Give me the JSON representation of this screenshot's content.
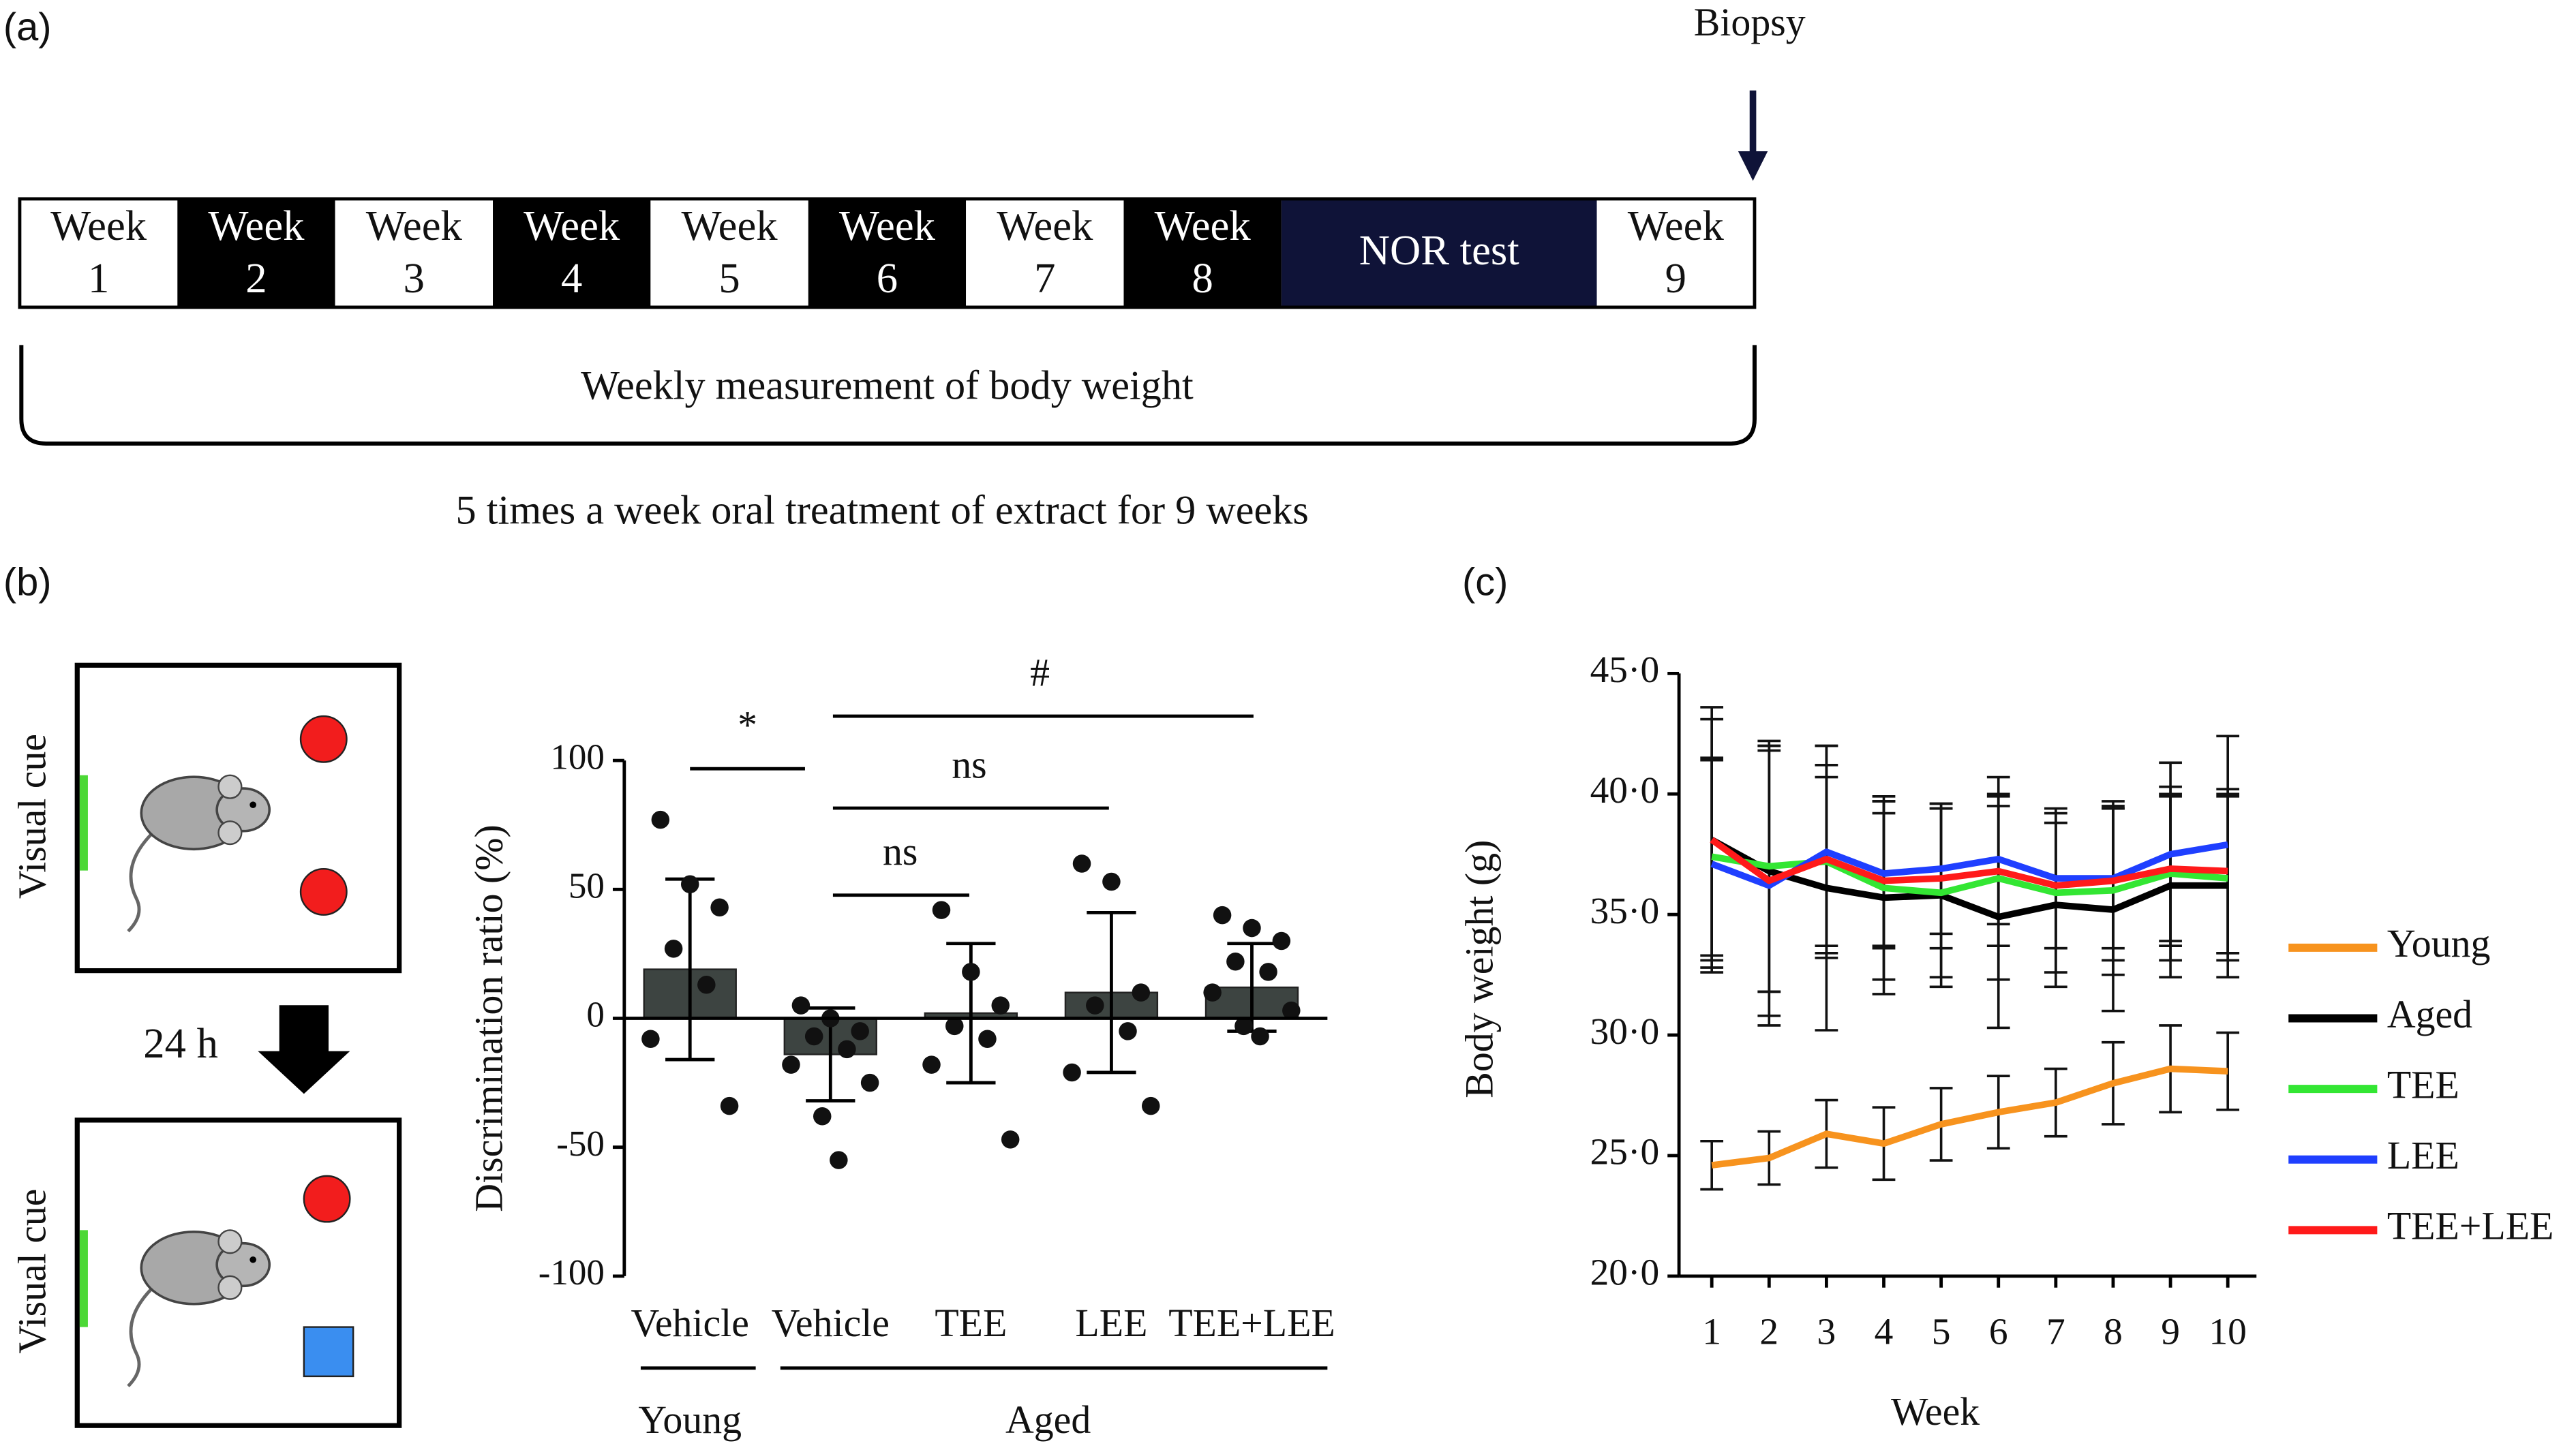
{
  "panel_labels": [
    "(a)",
    "(b)",
    "(c)"
  ],
  "timeline": {
    "biopsy": "Biopsy",
    "weeks": [
      [
        "Week",
        "1"
      ],
      [
        "Week",
        "2"
      ],
      [
        "Week",
        "3"
      ],
      [
        "Week",
        "4"
      ],
      [
        "Week",
        "5"
      ],
      [
        "Week",
        "6"
      ],
      [
        "Week",
        "7"
      ],
      [
        "Week",
        "8"
      ]
    ],
    "nor_test": "NOR test",
    "last_week": [
      "Week",
      "9"
    ],
    "bracket_label": "Weekly measurement of body weight",
    "caption": "5 times a week oral treatment of extract for 9 weeks"
  },
  "nor_diagram": {
    "cue_labels": [
      "Visual cue",
      "Visual cue"
    ],
    "interval": "24 h"
  },
  "chart_data": [
    {
      "type": "bar",
      "ylabel": "Discrimination ratio (%)",
      "categories": [
        "Vehicle",
        "Vehicle",
        "TEE",
        "LEE",
        "TEE+LEE"
      ],
      "groups": [
        "Young",
        "Aged"
      ],
      "values": [
        19,
        -14,
        2,
        10,
        12
      ],
      "errors": [
        35,
        18,
        27,
        31,
        17
      ],
      "points": [
        [
          77,
          52,
          43,
          27,
          13,
          -8,
          -34
        ],
        [
          5,
          0,
          -5,
          -7,
          -12,
          -18,
          -25,
          -38,
          -55
        ],
        [
          42,
          18,
          5,
          -3,
          -8,
          -18,
          -47
        ],
        [
          60,
          53,
          10,
          5,
          -5,
          -21,
          -34
        ],
        [
          40,
          35,
          30,
          22,
          18,
          10,
          3,
          -3,
          -7
        ]
      ],
      "color": "#3d4441",
      "ylim": [
        -100,
        100
      ],
      "yticks": [
        100,
        50,
        0,
        -50,
        -100
      ],
      "annotations": [
        "*",
        "ns",
        "ns",
        "#"
      ]
    },
    {
      "type": "line",
      "xlabel": "Week",
      "ylabel": "Body weight (g)",
      "x": [
        1,
        2,
        3,
        4,
        5,
        6,
        7,
        8,
        9,
        10
      ],
      "xlim": [
        0.5,
        10.5
      ],
      "xticks": [
        1,
        2,
        3,
        4,
        5,
        6,
        7,
        8,
        9,
        10
      ],
      "ylim": [
        20,
        45
      ],
      "yticks": [
        {
          "value": 45,
          "label": "45·0"
        },
        {
          "value": 40,
          "label": "40·0"
        },
        {
          "value": 35,
          "label": "35·0"
        },
        {
          "value": 30,
          "label": "30·0"
        },
        {
          "value": 25,
          "label": "25·0"
        },
        {
          "value": 20,
          "label": "20·0"
        }
      ],
      "series": [
        {
          "name": "Young",
          "color": "#f7931e",
          "values": [
            24.6,
            24.9,
            25.9,
            25.5,
            26.3,
            26.8,
            27.2,
            28.0,
            28.6,
            28.5
          ],
          "errors": [
            1.0,
            1.1,
            1.4,
            1.5,
            1.5,
            1.5,
            1.4,
            1.7,
            1.8,
            1.6
          ]
        },
        {
          "name": "Aged",
          "color": "#000000",
          "values": [
            38.1,
            36.8,
            36.1,
            35.7,
            35.8,
            34.9,
            35.4,
            35.2,
            36.2,
            36.2
          ],
          "errors": [
            5.0,
            5.0,
            5.9,
            4.0,
            3.8,
            4.6,
            3.4,
            4.2,
            3.8,
            3.8
          ]
        },
        {
          "name": "TEE",
          "color": "#33e633",
          "values": [
            37.4,
            37.0,
            37.2,
            36.1,
            35.9,
            36.5,
            35.9,
            36.0,
            36.7,
            36.5
          ],
          "errors": [
            4.1,
            5.2,
            3.5,
            3.8,
            3.5,
            4.2,
            3.3,
            3.5,
            3.6,
            3.4
          ]
        },
        {
          "name": "LEE",
          "color": "#1f3fff",
          "values": [
            37.1,
            36.2,
            37.6,
            36.7,
            36.9,
            37.3,
            36.5,
            36.5,
            37.5,
            37.9
          ],
          "errors": [
            4.3,
            5.8,
            4.4,
            3.0,
            2.7,
            2.7,
            2.9,
            2.9,
            3.8,
            4.5
          ]
        },
        {
          "name": "TEE+LEE",
          "color": "#ff1a1a",
          "values": [
            38.1,
            36.4,
            37.3,
            36.4,
            36.5,
            36.8,
            36.2,
            36.4,
            36.9,
            36.8
          ],
          "errors": [
            5.5,
            5.6,
            3.9,
            2.8,
            2.9,
            3.1,
            2.6,
            3.3,
            3.0,
            3.4
          ]
        }
      ]
    }
  ]
}
